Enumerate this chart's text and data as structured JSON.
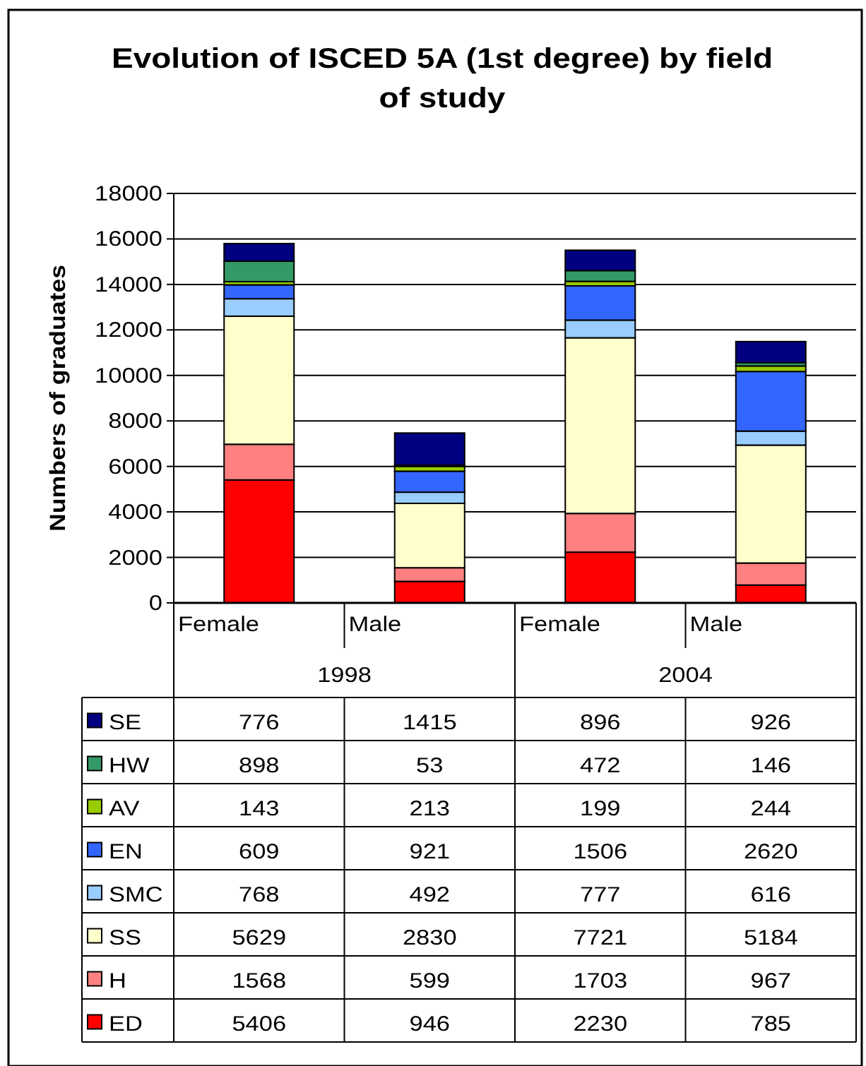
{
  "chart_data": {
    "type": "bar",
    "title": "Evolution of ISCED 5A (1st degree) by field of study",
    "ylabel": "Numbers of graduates",
    "categories": [
      "Female",
      "Male",
      "Female",
      "Male"
    ],
    "annotations": [
      "1998",
      "2004"
    ],
    "stacked": true,
    "series": [
      {
        "name": "ED",
        "color": "#ff0000",
        "values": [
          5406,
          946,
          2230,
          785
        ]
      },
      {
        "name": "H",
        "color": "#ff8080",
        "values": [
          1568,
          599,
          1703,
          967
        ]
      },
      {
        "name": "SS",
        "color": "#ffffcc",
        "values": [
          5629,
          2830,
          7721,
          5184
        ]
      },
      {
        "name": "SMC",
        "color": "#99ccff",
        "values": [
          768,
          492,
          777,
          616
        ]
      },
      {
        "name": "EN",
        "color": "#3366ff",
        "values": [
          609,
          921,
          1506,
          2620
        ]
      },
      {
        "name": "AV",
        "color": "#99cc00",
        "values": [
          143,
          213,
          199,
          244
        ]
      },
      {
        "name": "HW",
        "color": "#339966",
        "values": [
          898,
          53,
          472,
          146
        ]
      },
      {
        "name": "SE",
        "color": "#000080",
        "values": [
          776,
          1415,
          896,
          926
        ]
      }
    ],
    "ylim": [
      0,
      18000
    ],
    "yticks": [
      0,
      2000,
      4000,
      6000,
      8000,
      10000,
      12000,
      14000,
      16000,
      18000
    ],
    "grid": "y",
    "legend": "bottom",
    "data_labels": true
  }
}
